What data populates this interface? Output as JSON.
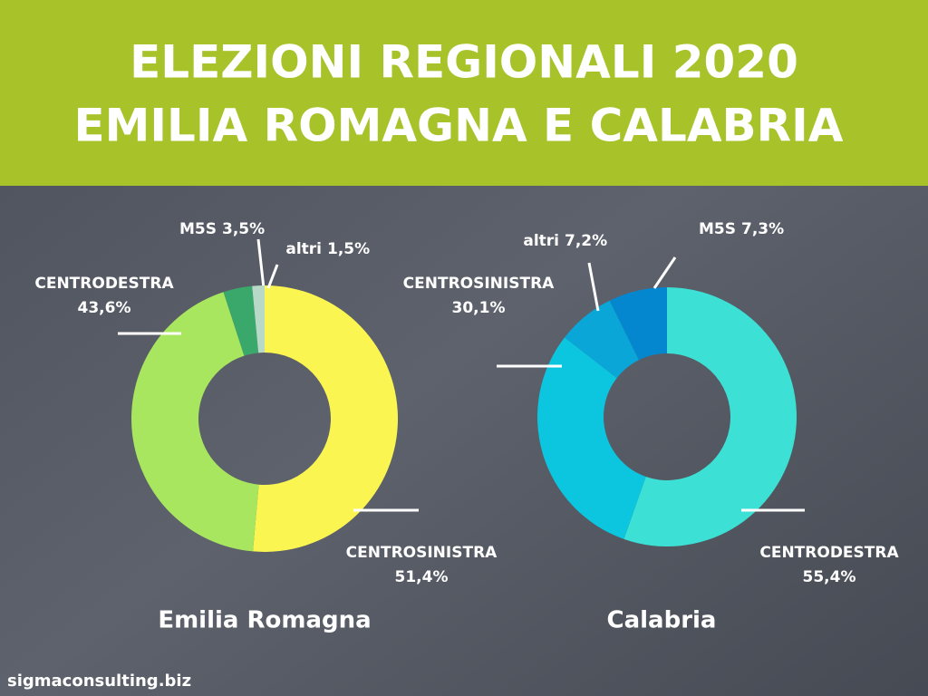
{
  "header": {
    "title_lines": [
      "ELEZIONI REGIONALI 2020",
      "EMILIA ROMAGNA E CALABRIA"
    ]
  },
  "chart_data": [
    {
      "type": "pie",
      "title": "Emilia Romagna",
      "categories": [
        "CENTROSINISTRA",
        "CENTRODESTRA",
        "M5S",
        "altri"
      ],
      "values": [
        51.4,
        43.6,
        3.5,
        1.5
      ],
      "value_labels": [
        "51,4%",
        "43,6%",
        "3,5%",
        "1,5%"
      ],
      "colors": [
        "#fbf552",
        "#a9e65f",
        "#3aa86a",
        "#b8d8c8"
      ]
    },
    {
      "type": "pie",
      "title": "Calabria",
      "categories": [
        "CENTRODESTRA",
        "CENTROSINISTRA",
        "altri",
        "M5S"
      ],
      "values": [
        55.4,
        30.1,
        7.2,
        7.3
      ],
      "value_labels": [
        "55,4%",
        "30,1%",
        "7,2%",
        "7,3%"
      ],
      "colors": [
        "#3ce0d4",
        "#0bc6de",
        "#0aa6d8",
        "#0587d0"
      ]
    }
  ],
  "footer": {
    "text": "sigmaconsulting.biz"
  }
}
